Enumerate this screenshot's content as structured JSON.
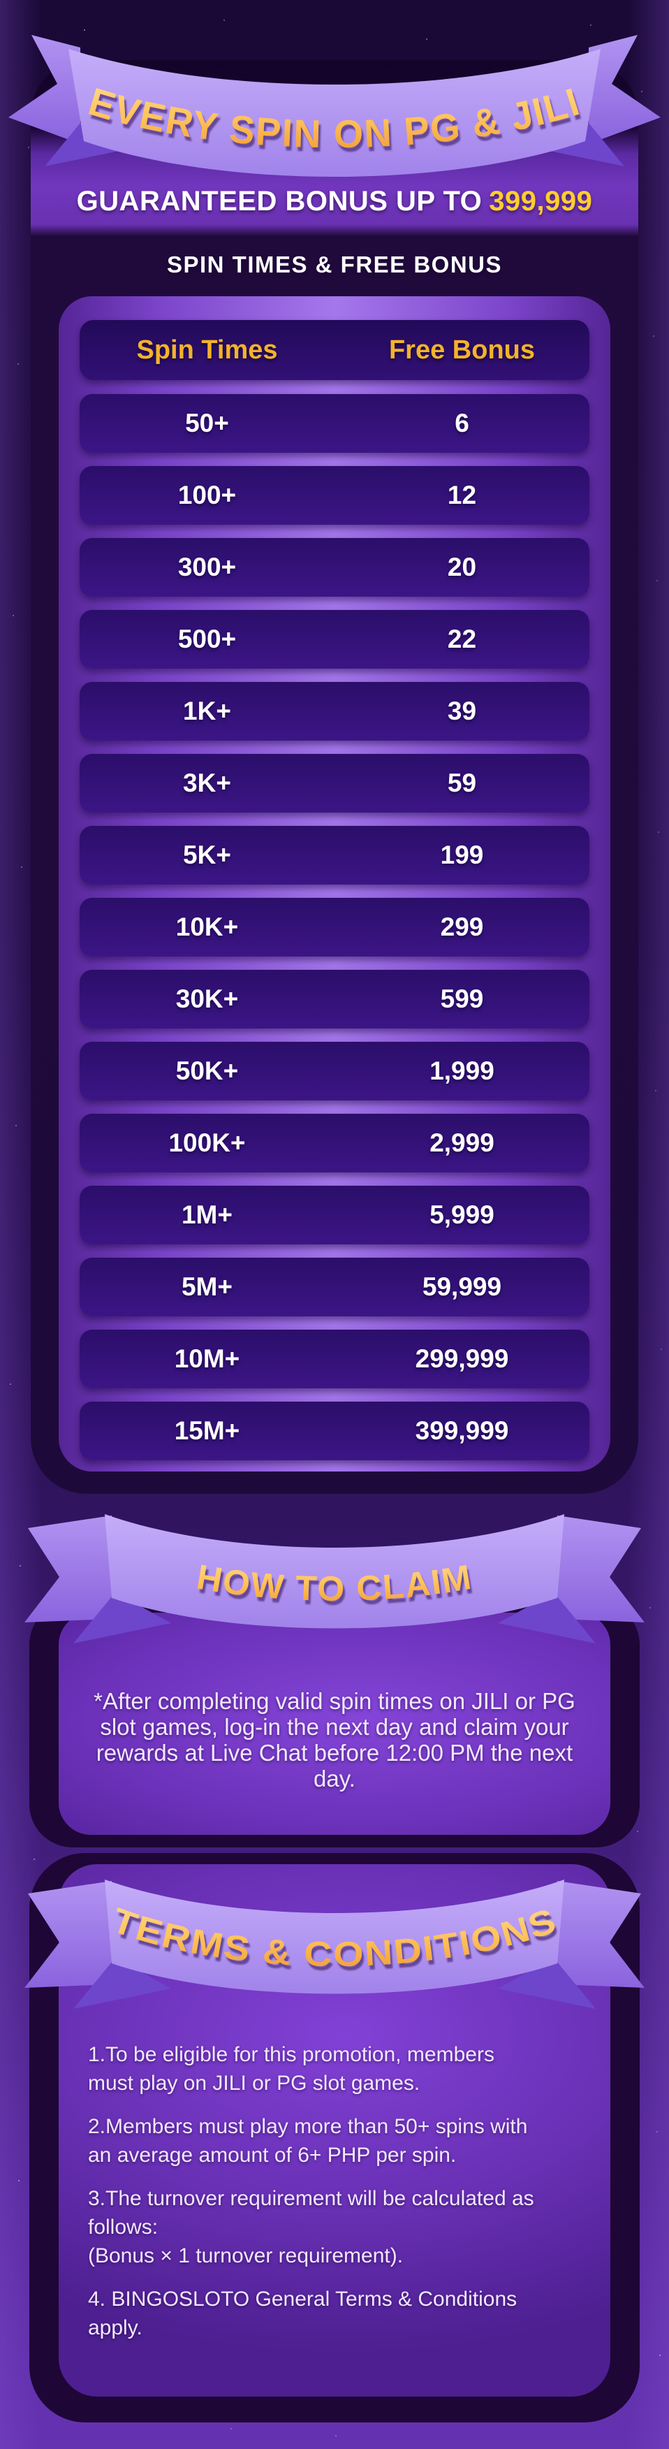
{
  "banner": {
    "title": "EVERY SPIN ON PG & JILI"
  },
  "guarantee": {
    "prefix": "GUARANTEED BONUS UP TO",
    "amount": "399,999"
  },
  "table": {
    "heading": "SPIN TIMES & FREE BONUS",
    "columns": [
      "Spin Times",
      "Free Bonus"
    ],
    "rows": [
      [
        "50+",
        "6"
      ],
      [
        "100+",
        "12"
      ],
      [
        "300+",
        "20"
      ],
      [
        "500+",
        "22"
      ],
      [
        "1K+",
        "39"
      ],
      [
        "3K+",
        "59"
      ],
      [
        "5K+",
        "199"
      ],
      [
        "10K+",
        "299"
      ],
      [
        "30K+",
        "599"
      ],
      [
        "50K+",
        "1,999"
      ],
      [
        "100K+",
        "2,999"
      ],
      [
        "1M+",
        "5,999"
      ],
      [
        "5M+",
        "59,999"
      ],
      [
        "10M+",
        "299,999"
      ],
      [
        "15M+",
        "399,999"
      ]
    ]
  },
  "claim": {
    "ribbon_label": "HOW TO CLAIM",
    "text": "*After completing valid spin times on JILI or PG\nslot games, log-in the next day and claim your\nrewards at Live Chat before 12:00 PM  the next\nday."
  },
  "terms": {
    "ribbon_label": "TERMS & CONDITIONS",
    "items": [
      "1.To be eligible for this promotion, members\nmust play on JILI or PG slot games.",
      "2.Members must play more than 50+ spins with\nan average amount of 6+ PHP per spin.",
      "3.The turnover requirement will be calculated as\nfollows:\n(Bonus × 1 turnover requirement).",
      "4. BINGOSLOTO General Terms & Conditions\napply."
    ]
  },
  "colors": {
    "accent_gold": "#ffc35b",
    "bonus_amount_yellow": "#ffce2e",
    "header_gold": "#f3b32b",
    "ribbon_purple": "#b49af2",
    "panel_light_purple": "#a577ec",
    "row_indigo": "#32107a",
    "frame_dark": "#1e0636",
    "background_dark": "#1a0836"
  }
}
